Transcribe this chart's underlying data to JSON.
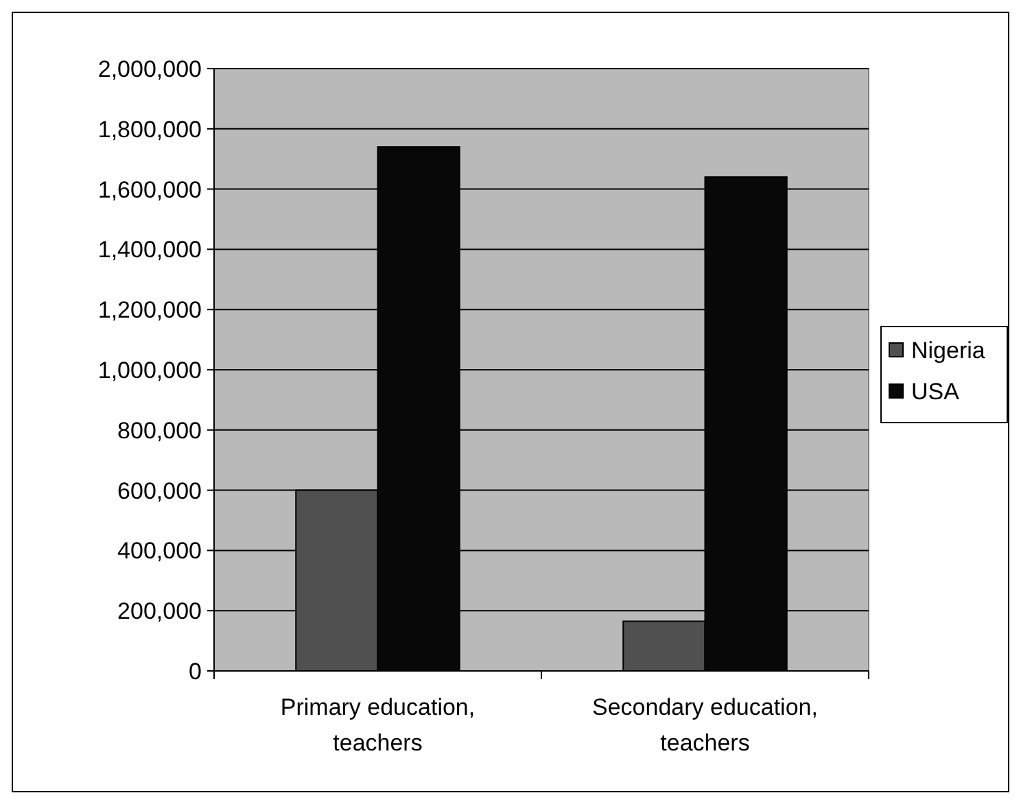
{
  "chart_data": {
    "type": "bar",
    "categories": [
      "Primary education, teachers",
      "Secondary education, teachers"
    ],
    "series": [
      {
        "name": "Nigeria",
        "color": "#505050",
        "values": [
          600000,
          165000
        ]
      },
      {
        "name": "USA",
        "color": "#080808",
        "values": [
          1740000,
          1640000
        ]
      }
    ],
    "ylim": [
      0,
      2000000
    ],
    "yticks": [
      {
        "value": 0,
        "label": "0"
      },
      {
        "value": 200000,
        "label": "200,000"
      },
      {
        "value": 400000,
        "label": "400,000"
      },
      {
        "value": 600000,
        "label": "600,000"
      },
      {
        "value": 800000,
        "label": "800,000"
      },
      {
        "value": 1000000,
        "label": "1,000,000"
      },
      {
        "value": 1200000,
        "label": "1,200,000"
      },
      {
        "value": 1400000,
        "label": "1,400,000"
      },
      {
        "value": 1600000,
        "label": "1,600,000"
      },
      {
        "value": 1800000,
        "label": "1,800,000"
      },
      {
        "value": 2000000,
        "label": "2,000,000"
      }
    ],
    "grid": "y",
    "legend": "right"
  }
}
